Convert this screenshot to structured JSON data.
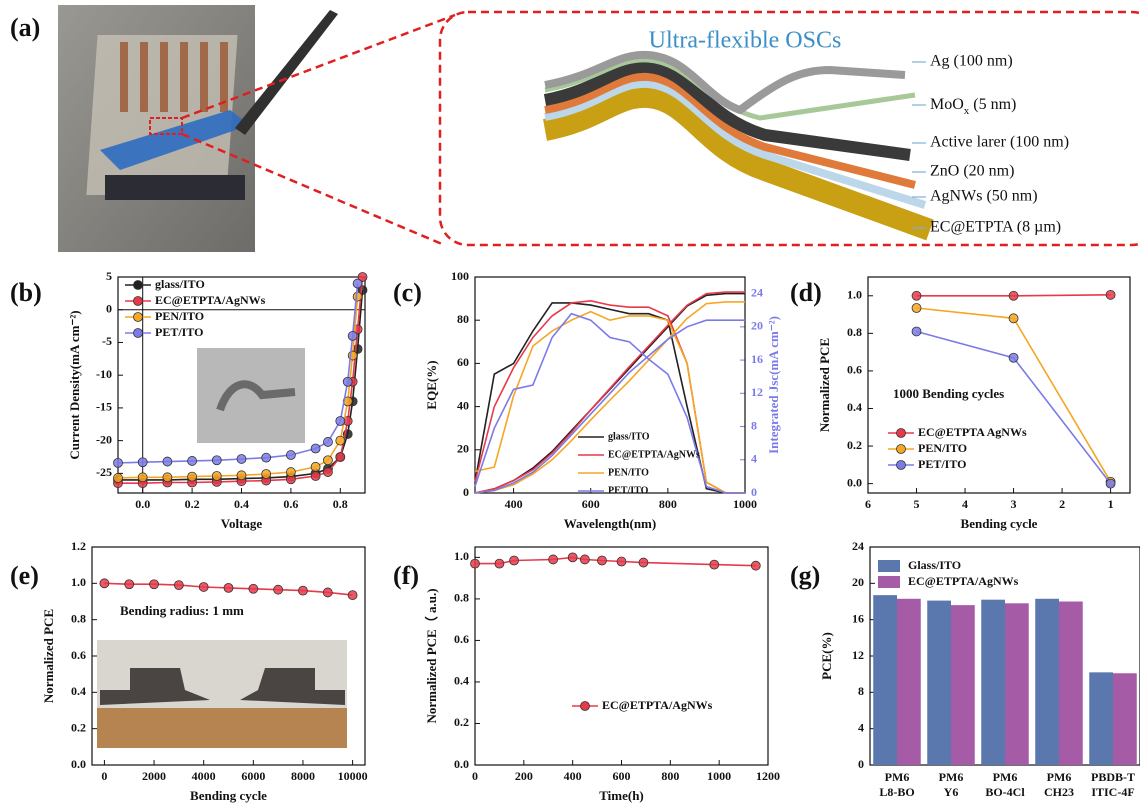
{
  "figure": {
    "panel_a": {
      "label": "(a)",
      "title": "Ultra-flexible OSCs",
      "layers": [
        "Ag  (100 nm)",
        [
          "MoO",
          "x",
          "  (5 nm)"
        ],
        "Active larer  (100 nm)",
        "ZnO  (20 nm)",
        "AgNWs  (50 nm)",
        "EC@ETPTA  (8 µm)"
      ]
    }
  },
  "chart_data": [
    {
      "panel": "(b)",
      "type": "line",
      "markers": true,
      "zero_lines": true,
      "x": [
        -0.1,
        0,
        0.1,
        0.2,
        0.3,
        0.4,
        0.5,
        0.6,
        0.7,
        0.75,
        0.8,
        0.83,
        0.85,
        0.87,
        0.89
      ],
      "xlim": [
        -0.1,
        0.9
      ],
      "xticks": [
        {
          "value": 0,
          "label": "0.0"
        },
        0.2,
        0.4,
        0.6,
        0.8
      ],
      "ylim": [
        -28,
        5
      ],
      "yticks": [
        -25,
        -20,
        -15,
        -10,
        -5,
        0,
        5
      ],
      "xlabel": "Voltage",
      "ylabel": "Current Density(mA cm⁻²)",
      "series": [
        {
          "name": "glass/ITO",
          "color": "#222222",
          "values": [
            -26,
            -26,
            -26,
            -25.9,
            -25.9,
            -25.8,
            -25.7,
            -25.5,
            -25,
            -24.3,
            -22.5,
            -19,
            -14,
            -6,
            3
          ]
        },
        {
          "name": "EC@ETPTA/AgNWs",
          "color": "#e8394a",
          "values": [
            -26.5,
            -26.5,
            -26.4,
            -26.4,
            -26.3,
            -26.2,
            -26.1,
            -25.9,
            -25.4,
            -24.8,
            -22.5,
            -17,
            -11,
            -3,
            5
          ]
        },
        {
          "name": "PEN/ITO",
          "color": "#f5a623",
          "values": [
            -25.7,
            -25.6,
            -25.6,
            -25.5,
            -25.4,
            -25.3,
            -25.1,
            -24.8,
            -24,
            -23,
            -20,
            -14,
            -7,
            2,
            null
          ]
        },
        {
          "name": "PET/ITO",
          "color": "#7b7be8",
          "values": [
            -23.4,
            -23.3,
            -23.2,
            -23.1,
            -23,
            -22.8,
            -22.6,
            -22.2,
            -21.2,
            -20.2,
            -17,
            -11,
            -4,
            4,
            null
          ]
        }
      ]
    },
    {
      "panel": "(c)",
      "type": "line",
      "markers": false,
      "x": [
        300,
        350,
        400,
        450,
        500,
        550,
        600,
        650,
        700,
        750,
        800,
        850,
        900,
        950,
        1000
      ],
      "xlim": [
        300,
        1000
      ],
      "xticks": [
        400,
        600,
        800,
        1000
      ],
      "ylim": [
        0,
        100
      ],
      "yticks": [
        0,
        20,
        40,
        60,
        80,
        100
      ],
      "y2lim": [
        0,
        26
      ],
      "y2ticks": [
        0,
        4,
        8,
        12,
        16,
        20,
        24
      ],
      "y2_color": "#7b7be8",
      "xlabel": "Wavelength(nm)",
      "ylabel": "EQE(%)",
      "y2label": "Integrated Jsc(mA cm⁻²)",
      "series": [
        {
          "name": "glass/ITO",
          "color": "#222222",
          "values": [
            5,
            55,
            60,
            75,
            88,
            88,
            87,
            85,
            83,
            83,
            80,
            40,
            2,
            0,
            0
          ],
          "integrated_jsc": [
            0,
            0.5,
            1.5,
            3,
            5,
            7.5,
            10,
            12.5,
            15,
            17.5,
            20,
            22.5,
            23.8,
            24,
            24
          ]
        },
        {
          "name": "EC@ETPTA/AgNWs",
          "color": "#e8394a",
          "values": [
            5,
            40,
            58,
            72,
            82,
            88,
            89,
            87,
            86,
            86,
            82,
            60,
            5,
            0,
            0
          ],
          "integrated_jsc": [
            0,
            0.5,
            1.5,
            2.8,
            4.8,
            7.3,
            10,
            12.6,
            15.2,
            17.7,
            20.2,
            22.6,
            24,
            24.2,
            24.2
          ]
        },
        {
          "name": "PEN/ITO",
          "color": "#f5a623",
          "values": [
            10,
            12,
            45,
            68,
            75,
            80,
            84,
            80,
            82,
            82,
            80,
            60,
            5,
            0,
            0
          ],
          "integrated_jsc": [
            0,
            0.3,
            1,
            2.3,
            4,
            6.3,
            8.8,
            11.2,
            13.5,
            16,
            18.5,
            21,
            22.8,
            23,
            23
          ]
        },
        {
          "name": "PET/ITO",
          "color": "#7b7be8",
          "values": [
            3,
            30,
            48,
            50,
            72,
            83,
            80,
            72,
            70,
            62,
            55,
            35,
            3,
            0,
            0
          ],
          "integrated_jsc": [
            0,
            0.3,
            1.2,
            2.5,
            4.5,
            7,
            9.5,
            12,
            14.5,
            16.5,
            18.5,
            20,
            20.8,
            20.8,
            20.8
          ]
        }
      ]
    },
    {
      "panel": "(d)",
      "type": "line",
      "markers": true,
      "x": [
        5,
        3,
        1
      ],
      "xlim": [
        6,
        0.6
      ],
      "xticks": [
        6,
        5,
        4,
        3,
        2,
        1
      ],
      "ylim": [
        -0.05,
        1.1
      ],
      "yticks": [
        {
          "value": 0,
          "label": "0.0"
        },
        0.2,
        0.4,
        0.6,
        0.8,
        {
          "value": 1,
          "label": "1.0"
        }
      ],
      "xlabel": "Bending cycle",
      "ylabel": "Normalized PCE",
      "annotations": [
        "1000 Bending cycles"
      ],
      "series": [
        {
          "name": "EC@ETPTA AgNWs",
          "color": "#e8394a",
          "values": [
            1.0,
            1.0,
            1.005
          ]
        },
        {
          "name": "PEN/ITO",
          "color": "#f5a623",
          "values": [
            0.935,
            0.88,
            0.01
          ]
        },
        {
          "name": "PET/ITO",
          "color": "#7b7be8",
          "values": [
            0.81,
            0.67,
            0.0
          ]
        }
      ]
    },
    {
      "panel": "(e)",
      "type": "line",
      "markers": true,
      "x": [
        0,
        1000,
        2000,
        3000,
        4000,
        5000,
        6000,
        7000,
        8000,
        9000,
        10000
      ],
      "xlim": [
        -500,
        10500
      ],
      "xticks": [
        0,
        2000,
        4000,
        6000,
        8000,
        10000
      ],
      "ylim": [
        0,
        1.2
      ],
      "yticks": [
        {
          "value": 0,
          "label": "0.0"
        },
        0.2,
        0.4,
        0.6,
        0.8,
        {
          "value": 1,
          "label": "1.0"
        },
        1.2
      ],
      "xlabel": "Bending cycle",
      "ylabel": "Normalized PCE",
      "annotations": [
        "Bending radius: 1 mm"
      ],
      "series": [
        {
          "color": "#e8394a",
          "values": [
            1.0,
            0.995,
            0.995,
            0.99,
            0.98,
            0.975,
            0.97,
            0.965,
            0.96,
            0.95,
            0.935
          ]
        }
      ]
    },
    {
      "panel": "(f)",
      "type": "line",
      "markers": true,
      "x": [
        0,
        100,
        160,
        320,
        400,
        450,
        520,
        600,
        690,
        980,
        1150
      ],
      "xlim": [
        0,
        1200
      ],
      "xticks": [
        0,
        200,
        400,
        600,
        800,
        1000,
        1200
      ],
      "ylim": [
        0,
        1.05
      ],
      "yticks": [
        {
          "value": 0,
          "label": "0.0"
        },
        0.2,
        0.4,
        0.6,
        0.8,
        {
          "value": 1,
          "label": "1.0"
        }
      ],
      "xlabel": "Time(h)",
      "ylabel": "Normalized PCE（ a.u.)",
      "series": [
        {
          "name": "EC@ETPTA/AgNWs",
          "color": "#e8394a",
          "values": [
            0.97,
            0.97,
            0.985,
            0.99,
            1.0,
            0.99,
            0.985,
            0.98,
            0.975,
            0.965,
            0.96
          ]
        }
      ]
    },
    {
      "panel": "(g)",
      "type": "bar",
      "categories": [
        [
          "PM6",
          "L8-BO"
        ],
        [
          "PM6",
          "Y6"
        ],
        [
          "PM6",
          "BO-4Cl"
        ],
        [
          "PM6",
          "CH23"
        ],
        [
          "PBDB-T",
          "ITIC-4F"
        ]
      ],
      "ylim": [
        0,
        24
      ],
      "yticks": [
        0,
        4,
        8,
        12,
        16,
        20,
        24
      ],
      "ylabel": "PCE(%)",
      "series": [
        {
          "name": "Glass/ITO",
          "color": "#5b78ae",
          "values": [
            18.7,
            18.1,
            18.2,
            18.3,
            10.2
          ]
        },
        {
          "name": "EC@ETPTA/AgNWs",
          "color": "#a65ba6",
          "values": [
            18.3,
            17.6,
            17.8,
            18.0,
            10.1
          ]
        }
      ]
    }
  ]
}
